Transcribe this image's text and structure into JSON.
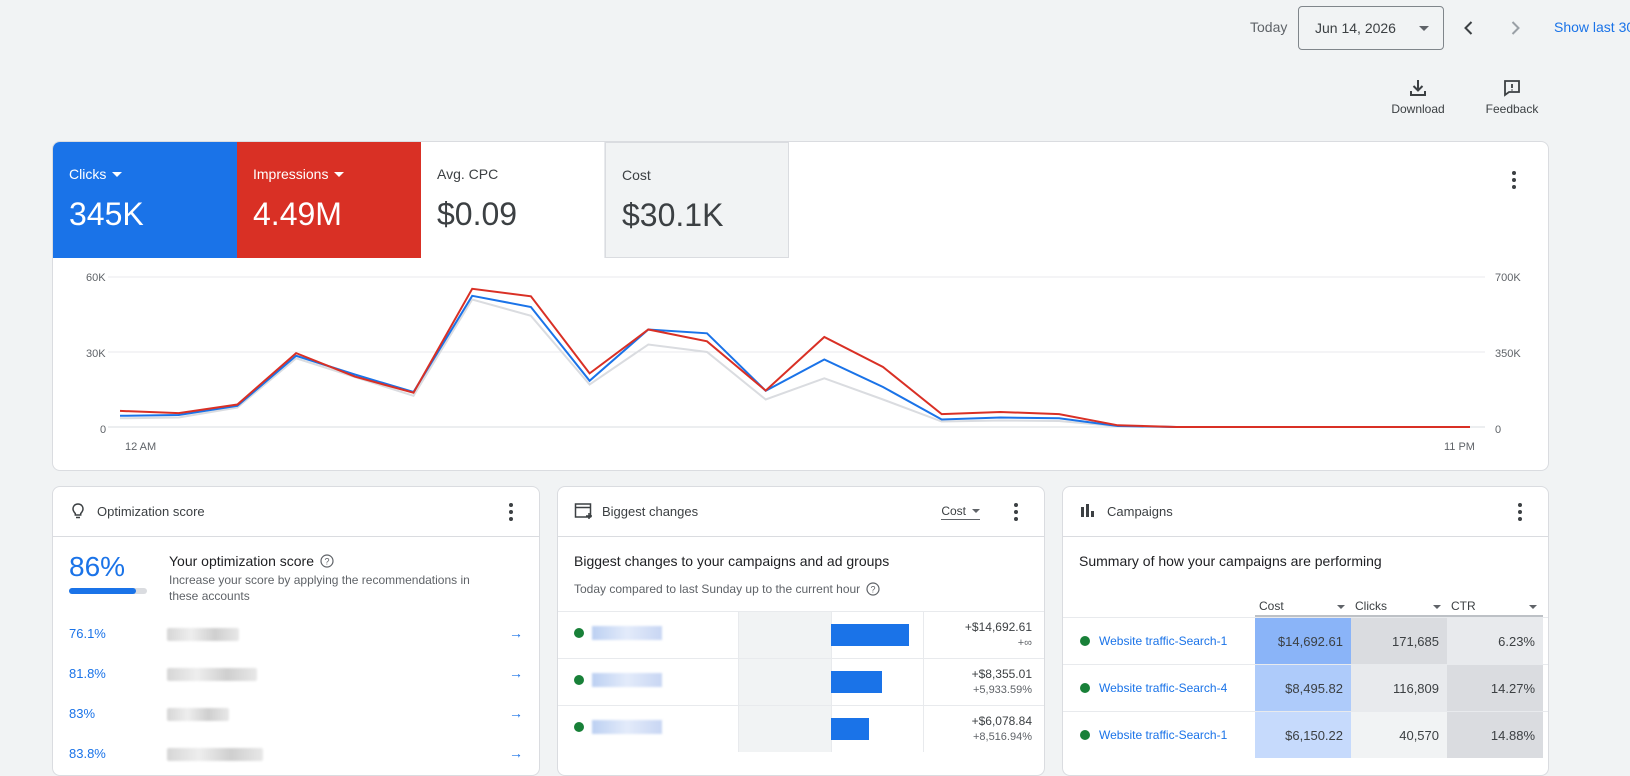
{
  "topbar": {
    "today_label": "Today",
    "date_value": "Jun 14, 2026",
    "show_last": "Show last 30"
  },
  "tools": {
    "download": "Download",
    "feedback": "Feedback"
  },
  "metrics": [
    {
      "label": "Clicks",
      "value": "345K",
      "color": "#1a73e8"
    },
    {
      "label": "Impressions",
      "value": "4.49M",
      "color": "#d93025"
    },
    {
      "label": "Avg. CPC",
      "value": "$0.09"
    },
    {
      "label": "Cost",
      "value": "$30.1K"
    }
  ],
  "chart_data": {
    "type": "line",
    "x_start_label": "12 AM",
    "x_end_label": "11 PM",
    "y_left_ticks": [
      "60K",
      "30K",
      "0"
    ],
    "y_right_ticks": [
      "700K",
      "350K",
      "0"
    ],
    "ylim_left": [
      0,
      60000
    ],
    "ylim_right": [
      0,
      700000
    ],
    "x": [
      0,
      1,
      2,
      3,
      4,
      5,
      6,
      7,
      8,
      9,
      10,
      11,
      12,
      13,
      14,
      15,
      16,
      17,
      18,
      19,
      20,
      21,
      22,
      23
    ],
    "series": [
      {
        "name": "Clicks",
        "color": "#1a73e8",
        "axis": "left",
        "values": [
          4500,
          4800,
          8500,
          28500,
          21000,
          14000,
          52500,
          48000,
          18500,
          39000,
          37500,
          14500,
          27000,
          16000,
          3000,
          3800,
          3500,
          400,
          0,
          0,
          0,
          0,
          0,
          0
        ]
      },
      {
        "name": "Impressions",
        "color": "#d93025",
        "axis": "right",
        "values": [
          75000,
          65000,
          105000,
          345000,
          235000,
          160000,
          645000,
          610000,
          250000,
          455000,
          400000,
          170000,
          420000,
          280000,
          60000,
          70000,
          60000,
          8000,
          0,
          0,
          0,
          0,
          0,
          0
        ]
      },
      {
        "name": "Comparison",
        "color": "#dadce0",
        "axis": "left",
        "values": [
          3500,
          3800,
          7800,
          27500,
          20000,
          12500,
          51000,
          44500,
          17000,
          33000,
          30000,
          11000,
          19500,
          11000,
          2200,
          2600,
          2400,
          300,
          0,
          0,
          0,
          0,
          0,
          0
        ]
      }
    ]
  },
  "optimization": {
    "header": "Optimization score",
    "score": "86%",
    "score_fraction": 0.86,
    "title": "Your optimization score",
    "subtitle": "Increase your score by applying the recommendations in these accounts",
    "accounts": [
      {
        "pct": "76.1%"
      },
      {
        "pct": "81.8%"
      },
      {
        "pct": "83%"
      },
      {
        "pct": "83.8%"
      }
    ]
  },
  "biggest_changes": {
    "header": "Biggest changes",
    "selector": "Cost",
    "title": "Biggest changes to your campaigns and ad groups",
    "subtitle": "Today compared to last Sunday up to the current hour",
    "rows": [
      {
        "value": "+$14,692.61",
        "pct": "+∞",
        "bar_fraction": 1.0
      },
      {
        "value": "+$8,355.01",
        "pct": "+5,933.59%",
        "bar_fraction": 0.66
      },
      {
        "value": "+$6,078.84",
        "pct": "+8,516.94%",
        "bar_fraction": 0.49
      }
    ]
  },
  "campaigns": {
    "header": "Campaigns",
    "title": "Summary of how your campaigns are performing",
    "columns": [
      "Cost",
      "Clicks",
      "CTR"
    ],
    "rows": [
      {
        "name": "Website traffic-Search-1",
        "cost": "$14,692.61",
        "clicks": "171,685",
        "ctr": "6.23%"
      },
      {
        "name": "Website traffic-Search-4",
        "cost": "$8,495.82",
        "clicks": "116,809",
        "ctr": "14.27%"
      },
      {
        "name": "Website traffic-Search-1",
        "cost": "$6,150.22",
        "clicks": "40,570",
        "ctr": "14.88%"
      }
    ]
  }
}
